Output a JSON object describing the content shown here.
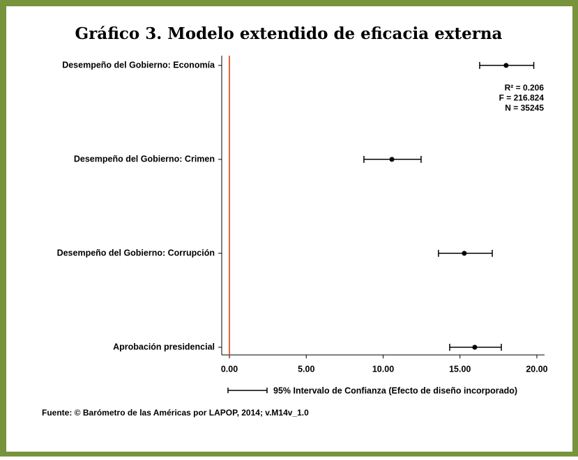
{
  "chart_data": {
    "type": "errorbar",
    "title": "Gráfico 3. Modelo extendido de eficacia externa",
    "categories": [
      "Desempeño del Gobierno: Economía",
      "Desempeño del Gobierno: Crimen",
      "Desempeño del Gobierno: Corrupción",
      "Aprobación presidencial"
    ],
    "values": [
      18.0,
      10.57,
      15.28,
      15.96
    ],
    "ci_low": [
      16.28,
      8.75,
      13.6,
      14.33
    ],
    "ci_high": [
      19.8,
      12.47,
      17.1,
      17.69
    ],
    "color": "#000000",
    "reference_line": {
      "value": 0,
      "color": "#e0643a"
    },
    "xlim": [
      -0.5,
      20.5
    ],
    "xticks": [
      {
        "value": 0,
        "label": "0.00"
      },
      {
        "value": 5,
        "label": "5.00"
      },
      {
        "value": 10,
        "label": "10.00"
      },
      {
        "value": 15,
        "label": "15.00"
      },
      {
        "value": 20,
        "label": "20.00"
      }
    ],
    "stats": [
      "R² = 0.206",
      "F = 216.824",
      "N = 35245"
    ],
    "legend_label": "95% Intervalo de Confianza (Efecto de diseño incorporado)",
    "source": "Fuente: © Barómetro de las Américas por LAPOP, 2014; v.M14v_1.0"
  }
}
